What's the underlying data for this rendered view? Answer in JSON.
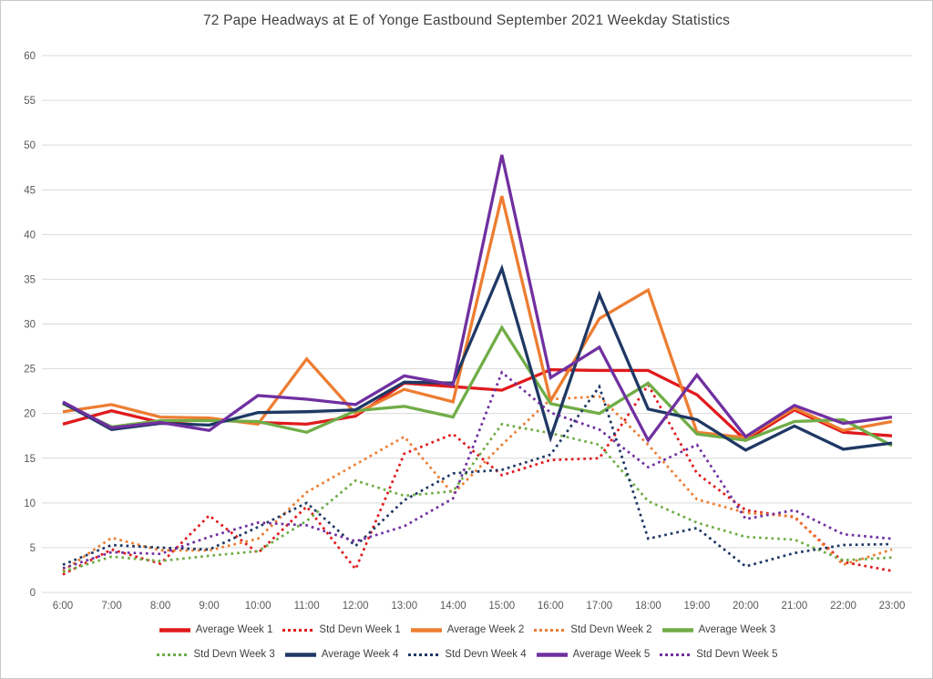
{
  "window": {
    "background": "#ffffff",
    "border_color": "#c9c9c9"
  },
  "axis_style": {
    "tick_label_color": "#595959",
    "grid_color": "#d9d9d9",
    "title_color": "#404040"
  },
  "chart_data": {
    "type": "line",
    "title": "72 Pape Headways at E of Yonge Eastbound September 2021 Weekday Statistics",
    "xlabel": "",
    "ylabel": "",
    "categories": [
      "6:00",
      "7:00",
      "8:00",
      "9:00",
      "10:00",
      "11:00",
      "12:00",
      "13:00",
      "14:00",
      "15:00",
      "16:00",
      "17:00",
      "18:00",
      "19:00",
      "20:00",
      "21:00",
      "22:00",
      "23:00"
    ],
    "y_ticks": [
      0,
      5,
      10,
      15,
      20,
      25,
      30,
      35,
      40,
      45,
      50,
      55,
      60
    ],
    "ylim": [
      0,
      60
    ],
    "grid": "horizontal",
    "legend_position": "bottom",
    "legend_rows": [
      [
        0,
        1,
        2,
        3,
        4
      ],
      [
        5,
        6,
        7,
        8,
        9
      ]
    ],
    "series": [
      {
        "name": "Average Week 1",
        "color": "#e01a1c",
        "style": "solid",
        "values": [
          18.8,
          20.3,
          19.0,
          19.3,
          19.0,
          18.8,
          19.7,
          23.4,
          23.0,
          22.6,
          24.9,
          24.8,
          24.8,
          22.1,
          17.0,
          20.4,
          17.9,
          17.5
        ]
      },
      {
        "name": "Std Devn Week 1",
        "color": "#e01a1c",
        "style": "dotted",
        "values": [
          2.0,
          4.8,
          3.2,
          8.6,
          4.4,
          9.6,
          2.6,
          15.5,
          17.7,
          13.1,
          14.8,
          15.0,
          23.2,
          13.3,
          9.2,
          8.4,
          3.4,
          2.4
        ]
      },
      {
        "name": "Average Week 2",
        "color": "#ed7d31",
        "style": "solid",
        "values": [
          20.2,
          21.0,
          19.6,
          19.5,
          18.8,
          26.1,
          20.0,
          22.7,
          21.3,
          44.3,
          21.4,
          30.6,
          33.8,
          17.9,
          17.3,
          20.6,
          18.1,
          19.1
        ]
      },
      {
        "name": "Std Devn Week 2",
        "color": "#ed7d31",
        "style": "dotted",
        "values": [
          2.4,
          6.1,
          4.7,
          4.7,
          6.0,
          11.2,
          14.3,
          17.4,
          11.0,
          16.5,
          21.6,
          21.9,
          16.5,
          10.4,
          8.9,
          8.5,
          3.1,
          4.8
        ]
      },
      {
        "name": "Average Week 3",
        "color": "#70ad47",
        "style": "solid",
        "values": [
          21.1,
          18.5,
          19.2,
          19.2,
          19.1,
          17.9,
          20.3,
          20.8,
          19.6,
          29.6,
          21.1,
          20.0,
          23.4,
          17.7,
          17.0,
          19.1,
          19.3,
          16.4
        ]
      },
      {
        "name": "Std Devn Week 3",
        "color": "#70ad47",
        "style": "dotted",
        "values": [
          2.3,
          4.0,
          3.5,
          4.1,
          4.6,
          8.0,
          12.5,
          10.8,
          11.3,
          18.8,
          17.8,
          16.5,
          10.2,
          7.8,
          6.2,
          5.9,
          3.6,
          3.9
        ]
      },
      {
        "name": "Average Week 4",
        "color": "#1f3864",
        "style": "solid",
        "values": [
          21.2,
          18.2,
          18.9,
          18.7,
          20.1,
          20.2,
          20.4,
          23.5,
          23.4,
          36.2,
          17.3,
          33.3,
          20.5,
          19.3,
          15.9,
          18.6,
          16.0,
          16.7
        ]
      },
      {
        "name": "Std Devn Week 4",
        "color": "#1f3864",
        "style": "dotted",
        "values": [
          3.1,
          5.3,
          5.0,
          4.8,
          7.3,
          10.0,
          5.2,
          10.3,
          13.3,
          13.7,
          15.4,
          23.0,
          6.0,
          7.2,
          2.9,
          4.4,
          5.3,
          5.4
        ]
      },
      {
        "name": "Average Week 5",
        "color": "#7030a0",
        "style": "solid",
        "values": [
          21.3,
          18.4,
          19.0,
          18.1,
          22.0,
          21.6,
          21.0,
          24.2,
          23.2,
          48.9,
          24.0,
          27.4,
          17.0,
          24.3,
          17.4,
          20.9,
          18.9,
          19.6
        ]
      },
      {
        "name": "Std Devn Week 5",
        "color": "#7030a0",
        "style": "dotted",
        "values": [
          2.7,
          4.5,
          4.3,
          6.2,
          7.8,
          7.5,
          5.7,
          7.4,
          10.5,
          24.6,
          20.1,
          18.2,
          14.0,
          16.5,
          8.2,
          9.2,
          6.5,
          6.0
        ]
      }
    ]
  }
}
